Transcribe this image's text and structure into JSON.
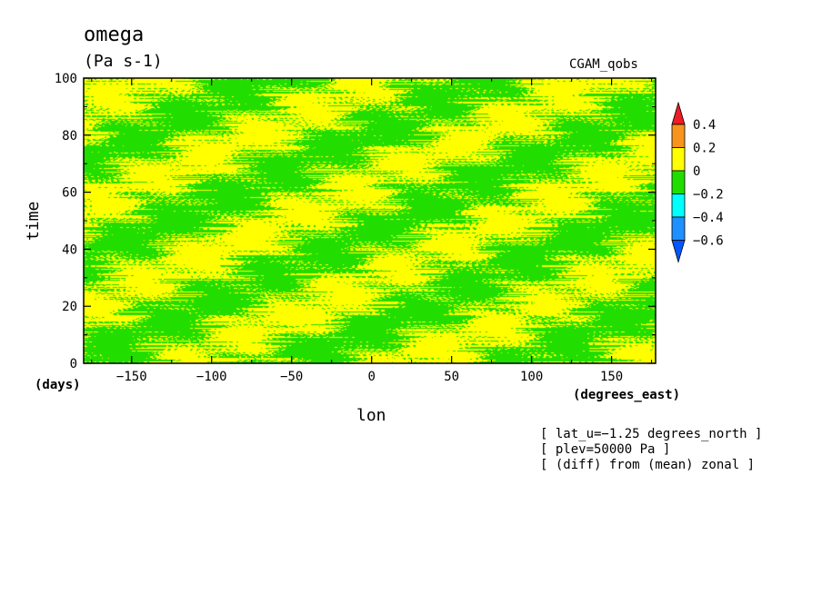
{
  "chart_data": {
    "type": "heatmap",
    "title": "omega",
    "units": "(Pa s-1)",
    "dataset": "CGAM_qobs",
    "xlabel": "lon",
    "xunits": "(degrees_east)",
    "ylabel": "time",
    "yunits": "(days)",
    "xlim": [
      -180,
      177.5
    ],
    "ylim": [
      0,
      100
    ],
    "xticks": [
      -150,
      -100,
      -50,
      0,
      50,
      100,
      150
    ],
    "xtick_labels": [
      "−150",
      "−100",
      "−50",
      "0",
      "50",
      "100",
      "150"
    ],
    "yticks": [
      0,
      20,
      40,
      60,
      80,
      100
    ],
    "ytick_labels": [
      "0",
      "20",
      "40",
      "60",
      "80",
      "100"
    ],
    "colorbar": {
      "levels": [
        0.4,
        0.2,
        0,
        -0.2,
        -0.4,
        -0.6
      ],
      "level_labels": [
        "0.4",
        "0.2",
        "0",
        "−0.2",
        "−0.4",
        "−0.6"
      ],
      "colors_top_to_bottom": [
        "#ee1c24",
        "#f7941d",
        "#ffff00",
        "#22dd00",
        "#00ffff",
        "#1e90ff",
        "#0057ff"
      ],
      "extend": "both"
    },
    "dominant_colors": [
      "#ffff00",
      "#22dd00"
    ],
    "notes": [
      "[ lat_u=−1.25 degrees_north ]",
      "[ plev=50000 Pa ]",
      "[ (diff) from (mean) zonal ]"
    ]
  }
}
